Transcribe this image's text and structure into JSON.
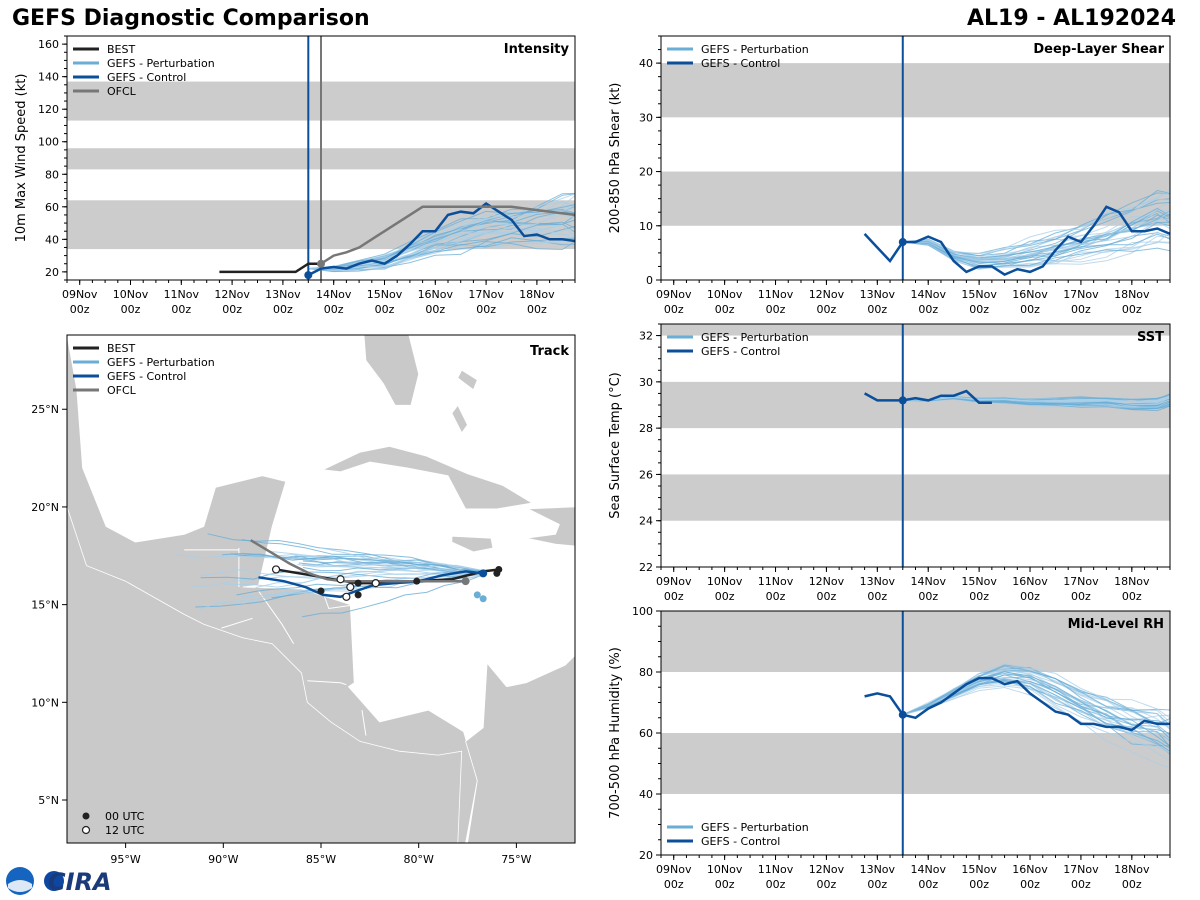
{
  "header": {
    "title": "GEFS Diagnostic Comparison",
    "storm_id": "AL19 - AL192024"
  },
  "logo": {
    "text": "CIRA"
  },
  "colors": {
    "best": "#222222",
    "perturbation": "#6aaed6",
    "perturbation_light": "#a9cfe8",
    "control": "#0b4f9b",
    "ofcl": "#777777",
    "band": "#cccccc",
    "land": "#c9c9c9"
  },
  "time_axis": {
    "tick_days": [
      0,
      1,
      2,
      3,
      4,
      5,
      6,
      7,
      8,
      9
    ],
    "tick_labels": [
      "09Nov\n00z",
      "10Nov\n00z",
      "11Nov\n00z",
      "12Nov\n00z",
      "13Nov\n00z",
      "14Nov\n00z",
      "15Nov\n00z",
      "16Nov\n00z",
      "17Nov\n00z",
      "18Nov\n00z"
    ]
  },
  "chart_data": [
    {
      "id": "intensity",
      "type": "line",
      "title": "Intensity",
      "ylabel": "10m Max Wind Speed (kt)",
      "xlim": [
        -0.25,
        9.75
      ],
      "ylim": [
        15,
        165
      ],
      "yticks": [
        20,
        40,
        60,
        80,
        100,
        120,
        140,
        160
      ],
      "bands": [
        [
          34,
          64
        ],
        [
          83,
          96
        ],
        [
          113,
          137
        ]
      ],
      "init_day": 4.5,
      "ofcl_init_day": 4.75,
      "legend": [
        "BEST",
        "GEFS - Perturbation",
        "GEFS - Control",
        "OFCL"
      ],
      "series": [
        {
          "name": "BEST",
          "x": [
            2.75,
            3,
            3.25,
            3.5,
            3.75,
            4,
            4.25,
            4.5,
            4.75
          ],
          "y": [
            20,
            20,
            20,
            20,
            20,
            20,
            20,
            25,
            25
          ]
        },
        {
          "name": "GEFS - Control",
          "x": [
            4.5,
            4.75,
            5,
            5.25,
            5.5,
            5.75,
            6,
            6.25,
            6.5,
            6.75,
            7,
            7.25,
            7.5,
            7.75,
            8,
            8.25,
            8.5,
            8.75,
            9,
            9.25,
            9.5,
            9.75
          ],
          "y": [
            18,
            22,
            23,
            22,
            25,
            27,
            25,
            30,
            37,
            45,
            45,
            55,
            57,
            56,
            62,
            57,
            52,
            42,
            43,
            40,
            40,
            39
          ]
        },
        {
          "name": "OFCL",
          "x": [
            4.75,
            5,
            5.25,
            5.5,
            5.75,
            6,
            6.5,
            6.75,
            7,
            7.5,
            8,
            8.5,
            9,
            9.75
          ],
          "y": [
            25,
            30,
            32,
            35,
            40,
            45,
            55,
            60,
            60,
            60,
            60,
            60,
            58,
            55
          ]
        },
        {
          "name": "GEFS - Perturbation (mean)",
          "x": [
            4.5,
            5,
            5.5,
            6,
            6.5,
            7,
            7.5,
            8,
            8.5,
            9,
            9.5,
            9.75
          ],
          "y": [
            20,
            22,
            24,
            26,
            32,
            38,
            42,
            46,
            48,
            50,
            52,
            52
          ]
        }
      ]
    },
    {
      "id": "shear",
      "type": "line",
      "title": "Deep-Layer Shear",
      "ylabel": "200-850 hPa Shear (kt)",
      "xlim": [
        -0.25,
        9.75
      ],
      "ylim": [
        0,
        45
      ],
      "yticks": [
        0,
        10,
        20,
        30,
        40
      ],
      "bands": [
        [
          10,
          20
        ],
        [
          30,
          40
        ]
      ],
      "init_day": 4.5,
      "legend": [
        "GEFS - Perturbation",
        "GEFS - Control"
      ],
      "series": [
        {
          "name": "GEFS - Control",
          "x": [
            3.75,
            4,
            4.25,
            4.5,
            4.75,
            5,
            5.25,
            5.5,
            5.75,
            6,
            6.25,
            6.5,
            6.75,
            7,
            7.25,
            7.5,
            7.75,
            8,
            8.25,
            8.5,
            8.75,
            9,
            9.25,
            9.5,
            9.75
          ],
          "y": [
            8.5,
            6,
            3.5,
            7,
            7,
            8,
            7,
            3.5,
            1.5,
            2.5,
            2.5,
            1,
            2,
            1.5,
            2.5,
            5.5,
            8,
            7,
            10,
            13.5,
            12.5,
            9,
            9,
            9.5,
            8.5
          ]
        },
        {
          "name": "GEFS - Perturbation (mean)",
          "x": [
            4.5,
            5,
            5.5,
            6,
            6.5,
            7,
            7.5,
            8,
            8.5,
            9,
            9.5,
            9.75
          ],
          "y": [
            6,
            7,
            4.5,
            3.5,
            4,
            5,
            6,
            7,
            8.5,
            10,
            12,
            12
          ]
        }
      ]
    },
    {
      "id": "sst",
      "type": "line",
      "title": "SST",
      "ylabel": "Sea Surface Temp (°C)",
      "xlim": [
        -0.25,
        9.75
      ],
      "ylim": [
        22,
        32.5
      ],
      "yticks": [
        22,
        24,
        26,
        28,
        30,
        32
      ],
      "bands": [
        [
          24,
          26
        ],
        [
          28,
          30
        ],
        [
          32,
          34
        ]
      ],
      "init_day": 4.5,
      "legend": [
        "GEFS - Perturbation",
        "GEFS - Control"
      ],
      "series": [
        {
          "name": "GEFS - Control",
          "x": [
            3.75,
            4,
            4.25,
            4.5,
            4.75,
            5,
            5.25,
            5.5,
            5.75,
            6,
            6.25
          ],
          "y": [
            29.5,
            29.2,
            29.2,
            29.2,
            29.3,
            29.2,
            29.4,
            29.4,
            29.6,
            29.1,
            29.1
          ]
        },
        {
          "name": "GEFS - Perturbation (mean)",
          "x": [
            4.5,
            5,
            5.5,
            6,
            6.5,
            7,
            7.5,
            8,
            8.5,
            9,
            9.5,
            9.75
          ],
          "y": [
            29.2,
            29.2,
            29.3,
            29.2,
            29.2,
            29.1,
            29.1,
            29.1,
            29.1,
            29.0,
            29.0,
            29.2
          ]
        }
      ]
    },
    {
      "id": "rh",
      "type": "line",
      "title": "Mid-Level RH",
      "ylabel": "700-500 hPa Humidity (%)",
      "xlim": [
        -0.25,
        9.75
      ],
      "ylim": [
        20,
        100
      ],
      "yticks": [
        20,
        40,
        60,
        80,
        100
      ],
      "bands": [
        [
          40,
          60
        ],
        [
          80,
          100
        ]
      ],
      "init_day": 4.5,
      "legend": [
        "GEFS - Perturbation",
        "GEFS - Control"
      ],
      "series": [
        {
          "name": "GEFS - Control",
          "x": [
            3.75,
            4,
            4.25,
            4.5,
            4.75,
            5,
            5.25,
            5.5,
            5.75,
            6,
            6.25,
            6.5,
            6.75,
            7,
            7.25,
            7.5,
            7.75,
            8,
            8.25,
            8.5,
            8.75,
            9,
            9.25,
            9.5,
            9.75
          ],
          "y": [
            72,
            73,
            72,
            66,
            65,
            68,
            70,
            73,
            76,
            78,
            78,
            76,
            77,
            73,
            70,
            67,
            66,
            63,
            63,
            62,
            62,
            61,
            64,
            63,
            63
          ]
        },
        {
          "name": "GEFS - Perturbation (mean)",
          "x": [
            4.5,
            5,
            5.5,
            6,
            6.5,
            7,
            7.5,
            8,
            8.5,
            9,
            9.5,
            9.75
          ],
          "y": [
            68,
            69,
            73,
            77,
            79,
            78,
            74,
            70,
            66,
            63,
            60,
            58
          ]
        }
      ]
    },
    {
      "id": "track",
      "type": "map",
      "title": "Track",
      "lon_range": [
        -98,
        -72
      ],
      "lat_range": [
        2.8,
        28.8
      ],
      "lon_ticks": [
        -95,
        -90,
        -85,
        -80,
        -75
      ],
      "lon_labels": [
        "95°W",
        "90°W",
        "85°W",
        "80°W",
        "75°W"
      ],
      "lat_ticks": [
        5,
        10,
        15,
        20,
        25
      ],
      "lat_labels": [
        "5°N",
        "10°N",
        "15°N",
        "20°N",
        "25°N"
      ],
      "legend": [
        "BEST",
        "GEFS - Perturbation",
        "GEFS - Control",
        "OFCL"
      ],
      "marker_legend": [
        "00 UTC",
        "12 UTC"
      ],
      "tracks": [
        {
          "name": "BEST",
          "lon": [
            -75.9,
            -76.7,
            -78.3,
            -80.1,
            -82.2,
            -83.1,
            -83.8,
            -84.4,
            -85.5,
            -87.3
          ],
          "lat": [
            16.8,
            16.7,
            16.3,
            16.2,
            16.1,
            16.1,
            16.2,
            16.3,
            16.5,
            16.8
          ]
        },
        {
          "name": "GEFS - Control",
          "lon": [
            -76.7,
            -77.6,
            -78.8,
            -80,
            -81.2,
            -82.3,
            -83.2,
            -84,
            -84.9,
            -85.8,
            -86.9,
            -88.2
          ],
          "lat": [
            16.6,
            16.7,
            16.5,
            16.2,
            16.1,
            16,
            15.7,
            15.4,
            15.5,
            15.9,
            16.2,
            16.4
          ]
        },
        {
          "name": "OFCL",
          "lon": [
            -77.6,
            -78.4,
            -80,
            -82.2,
            -83.9,
            -84.7,
            -85.6,
            -86.6,
            -88.6
          ],
          "lat": [
            16.2,
            16.2,
            16.2,
            16.2,
            16.2,
            16.3,
            16.6,
            17.1,
            18.3
          ]
        }
      ],
      "points_00utc": {
        "lon": [
          -75.9,
          -76.0,
          -80.1,
          -83.1,
          -83.1,
          -85.0
        ],
        "lat": [
          16.8,
          16.6,
          16.2,
          16.1,
          15.5,
          15.7
        ]
      },
      "points_12utc": {
        "lon": [
          -87.3,
          -82.2,
          -83.5,
          -83.7,
          -84.0
        ],
        "lat": [
          16.8,
          16.1,
          15.9,
          15.4,
          16.3
        ]
      }
    }
  ]
}
